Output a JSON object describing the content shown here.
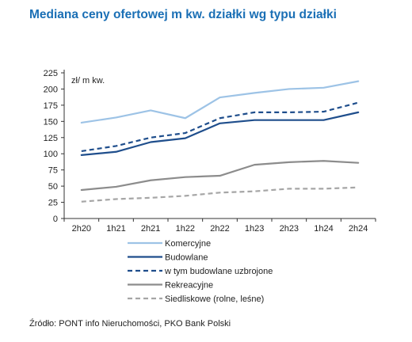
{
  "title": "Mediana ceny ofertowej m kw. działki wg typu działki",
  "source": "Źródło: PONT info Nieruchomości, PKO Bank Polski",
  "chart_data": {
    "type": "line",
    "title": "Mediana ceny ofertowej m kw. działki wg typu działki",
    "unit_label": "zł/ m kw.",
    "categories": [
      "2h20",
      "1h21",
      "2h21",
      "1h22",
      "2h22",
      "1h23",
      "2h23",
      "1h24",
      "2h24"
    ],
    "ylim": [
      0,
      225
    ],
    "yticks": [
      0,
      25,
      50,
      75,
      100,
      125,
      150,
      175,
      200,
      225
    ],
    "grid": false,
    "legend_position": "bottom",
    "series": [
      {
        "name": "Komercyjne",
        "color": "#9dc3e6",
        "dash": "solid",
        "values": [
          148,
          156,
          167,
          155,
          187,
          194,
          200,
          202,
          212
        ]
      },
      {
        "name": "Budowlane",
        "color": "#1f4e8c",
        "dash": "solid",
        "values": [
          98,
          103,
          118,
          124,
          147,
          152,
          152,
          152,
          164
        ]
      },
      {
        "name": "w tym budowlane uzbrojone",
        "color": "#1f4e8c",
        "dash": "dashed",
        "values": [
          104,
          112,
          125,
          132,
          155,
          164,
          164,
          165,
          179
        ]
      },
      {
        "name": "Rekreacyjne",
        "color": "#8c8c8c",
        "dash": "solid",
        "values": [
          44,
          49,
          59,
          64,
          66,
          83,
          87,
          89,
          86
        ]
      },
      {
        "name": "Siedliskowe (rolne, leśne)",
        "color": "#a6a6a6",
        "dash": "dashed",
        "values": [
          26,
          30,
          32,
          35,
          40,
          42,
          46,
          46,
          48
        ]
      }
    ]
  }
}
